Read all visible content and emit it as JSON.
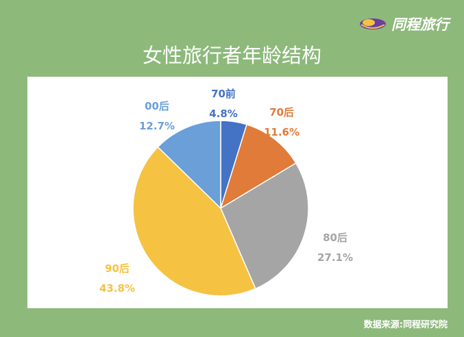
{
  "header": {
    "brand_name": "同程旅行",
    "title": "女性旅行者年龄结构"
  },
  "footer": {
    "source": "数据来源:同程研究院"
  },
  "chart_data": {
    "type": "pie",
    "title": "女性旅行者年龄结构",
    "categories": [
      "70前",
      "70后",
      "80后",
      "90后",
      "00后"
    ],
    "values": [
      4.8,
      11.6,
      27.1,
      43.8,
      12.7
    ],
    "value_labels": [
      "4.8%",
      "11.6%",
      "27.1%",
      "43.8%",
      "12.7%"
    ],
    "colors": [
      "#4472c4",
      "#e07b39",
      "#a5a5a5",
      "#f5c242",
      "#6a9fd8"
    ],
    "label_colors": [
      "#4472c4",
      "#e07b39",
      "#a5a5a5",
      "#f5c242",
      "#6a9fd8"
    ],
    "start_angle": "12 o'clock",
    "direction": "clockwise",
    "legend": "none"
  },
  "brand_icon": "tongcheng-logo-icon"
}
